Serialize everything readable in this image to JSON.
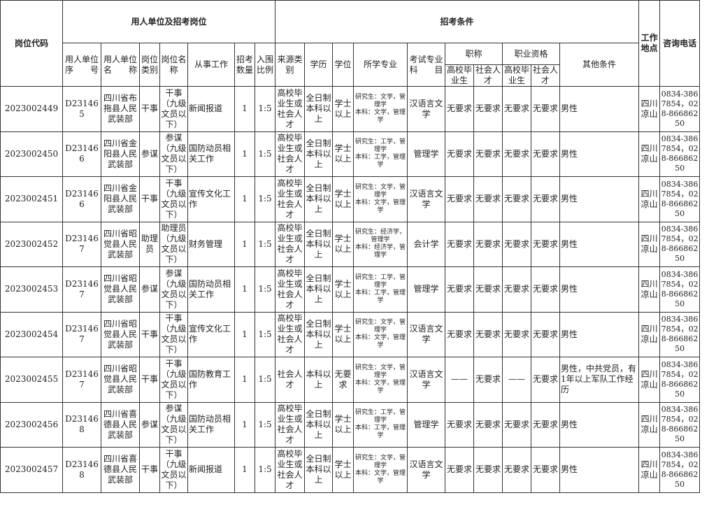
{
  "header": {
    "code": "岗位代码",
    "unit_group": "用人单位及招考岗位",
    "cond_group": "招考条件",
    "location": "工作地点",
    "phone": "咨询电话",
    "unit_no": "用人单位序　　号",
    "unit_name": "用人单位名　　称",
    "post_type": "岗位类别",
    "post_name": "岗位名称",
    "work": "从事工作",
    "count": "招考数量",
    "ratio": "入围比例",
    "source": "来源类别",
    "education": "学历",
    "degree": "学位",
    "major": "所学专业",
    "exam": "考试专业科　　目",
    "title": "职称",
    "qualification": "职业资格",
    "other": "其他条件",
    "grad": "高校毕业生",
    "social": "社会人才"
  },
  "rows": [
    {
      "code": "2023002449",
      "unit_no": "D231465",
      "unit_name": "四川省布拖县人民武装部",
      "post_type": "干事",
      "post_name": "干事（九级文员以下）",
      "work": "新闻报道",
      "count": "1",
      "ratio": "1:5",
      "source": "高校毕业生或社会人才",
      "education": "全日制本科以上",
      "degree": "学士以上",
      "major": "研究生：文学，管理学\n本科：文学，管理学",
      "exam": "汉语言文学",
      "title_grad": "无要求",
      "title_social": "无要求",
      "qual_grad": "无要求",
      "qual_social": "无要求",
      "other": "男性",
      "location": "四川凉山",
      "phone": "0834-3867854，028-86686250"
    },
    {
      "code": "2023002450",
      "unit_no": "D231466",
      "unit_name": "四川省金阳县人民武装部",
      "post_type": "参谋",
      "post_name": "参谋（九级文员以下）",
      "work": "国防动员相关工作",
      "count": "1",
      "ratio": "1:5",
      "source": "高校毕业生或社会人才",
      "education": "全日制本科以上",
      "degree": "学士以上",
      "major": "研究生：工学，管理学\n本科：工学，管理学",
      "exam": "管理学",
      "title_grad": "无要求",
      "title_social": "无要求",
      "qual_grad": "无要求",
      "qual_social": "无要求",
      "other": "男性",
      "location": "四川凉山",
      "phone": "0834-3867854，028-86686250"
    },
    {
      "code": "2023002451",
      "unit_no": "D231466",
      "unit_name": "四川省金阳县人民武装部",
      "post_type": "干事",
      "post_name": "干事（九级文员以下）",
      "work": "宣传文化工作",
      "count": "1",
      "ratio": "1:5",
      "source": "高校毕业生或社会人才",
      "education": "全日制本科以上",
      "degree": "学士以上",
      "major": "研究生：文学，管理学\n本科：文学，管理学",
      "exam": "汉语言文学",
      "title_grad": "无要求",
      "title_social": "无要求",
      "qual_grad": "无要求",
      "qual_social": "无要求",
      "other": "男性",
      "location": "四川凉山",
      "phone": "0834-3867854，028-86686250"
    },
    {
      "code": "2023002452",
      "unit_no": "D231467",
      "unit_name": "四川省昭觉县人民武装部",
      "post_type": "助理员",
      "post_name": "助理员（九级文员以下）",
      "work": "财务管理",
      "count": "1",
      "ratio": "1:5",
      "source": "高校毕业生或社会人才",
      "education": "全日制本科以上",
      "degree": "学士以上",
      "major": "研究生：经济学，管理学\n本科：经济学，管理学",
      "exam": "会计学",
      "title_grad": "无要求",
      "title_social": "无要求",
      "qual_grad": "无要求",
      "qual_social": "无要求",
      "other": "男性",
      "location": "四川凉山",
      "phone": "0834-3867854，028-86686250"
    },
    {
      "code": "2023002453",
      "unit_no": "D231467",
      "unit_name": "四川省昭觉县人民武装部",
      "post_type": "参谋",
      "post_name": "参谋（九级文员以下）",
      "work": "国防动员相关工作",
      "count": "1",
      "ratio": "1:5",
      "source": "高校毕业生或社会人才",
      "education": "全日制本科以上",
      "degree": "学士以上",
      "major": "研究生：工学，管理学\n本科：工学，管理学",
      "exam": "管理学",
      "title_grad": "无要求",
      "title_social": "无要求",
      "qual_grad": "无要求",
      "qual_social": "无要求",
      "other": "男性",
      "location": "四川凉山",
      "phone": "0834-3867854，028-86686250"
    },
    {
      "code": "2023002454",
      "unit_no": "D231467",
      "unit_name": "四川省昭觉县人民武装部",
      "post_type": "干事",
      "post_name": "干事（九级文员以下）",
      "work": "宣传文化工作",
      "count": "1",
      "ratio": "1:5",
      "source": "高校毕业生或社会人才",
      "education": "全日制本科以上",
      "degree": "学士以上",
      "major": "研究生：文学，管理学\n本科：文学，管理学",
      "exam": "汉语言文学",
      "title_grad": "无要求",
      "title_social": "无要求",
      "qual_grad": "无要求",
      "qual_social": "无要求",
      "other": "男性",
      "location": "四川凉山",
      "phone": "0834-3867854，028-86686250"
    },
    {
      "code": "2023002455",
      "unit_no": "D231467",
      "unit_name": "四川省昭觉县人民武装部",
      "post_type": "干事",
      "post_name": "干事（九级文员以下）",
      "work": "国防教育工作",
      "count": "1",
      "ratio": "1:5",
      "source": "社会人才",
      "education": "本科以上",
      "degree": "无要求",
      "major": "研究生：文学，管理学\n本科：文学，管理学",
      "exam": "汉语言文学",
      "title_grad": "——",
      "title_social": "无要求",
      "qual_grad": "——",
      "qual_social": "无要求",
      "other": "男性，中共党员，有1年以上军队工作经历",
      "location": "四川凉山",
      "phone": "0834-3867854，028-86686250"
    },
    {
      "code": "2023002456",
      "unit_no": "D231468",
      "unit_name": "四川省喜德县人民武装部",
      "post_type": "参谋",
      "post_name": "参谋（九级文员以下）",
      "work": "国防动员相关工作",
      "count": "1",
      "ratio": "1:5",
      "source": "高校毕业生或社会人才",
      "education": "全日制本科以上",
      "degree": "学士以上",
      "major": "研究生：工学，管理学\n本科：工学，管理学",
      "exam": "管理学",
      "title_grad": "无要求",
      "title_social": "无要求",
      "qual_grad": "无要求",
      "qual_social": "无要求",
      "other": "男性",
      "location": "四川凉山",
      "phone": "0834-3867854，028-86686250"
    },
    {
      "code": "2023002457",
      "unit_no": "D231468",
      "unit_name": "四川省喜德县人民武装部",
      "post_type": "干事",
      "post_name": "干事（九级文员以下）",
      "work": "新闻报道",
      "count": "1",
      "ratio": "1:5",
      "source": "高校毕业生或社会人才",
      "education": "全日制本科以上",
      "degree": "学士以上",
      "major": "研究生：文学，管理学\n本科：文学，管理学",
      "exam": "汉语言文学",
      "title_grad": "无要求",
      "title_social": "无要求",
      "qual_grad": "无要求",
      "qual_social": "无要求",
      "other": "男性",
      "location": "四川凉山",
      "phone": "0834-3867854，028-86686250"
    }
  ]
}
